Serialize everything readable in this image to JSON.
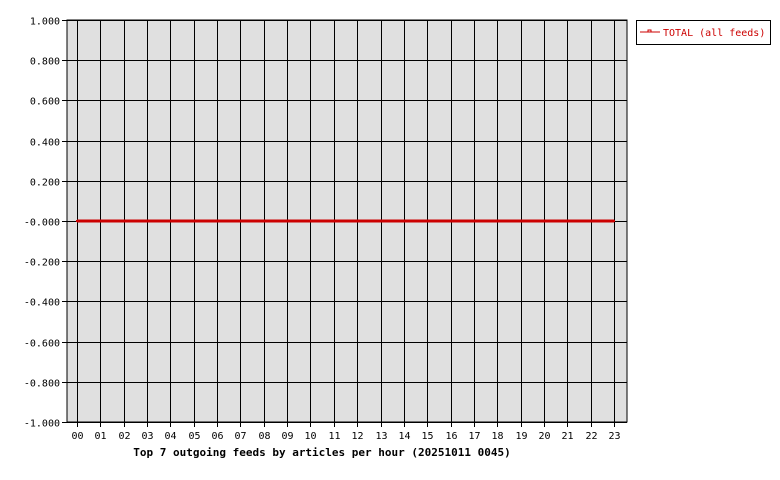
{
  "chart_data": {
    "type": "line",
    "title": "Top 7 outgoing feeds by articles per hour (20251011 0045)",
    "xlabel": "",
    "ylabel": "",
    "categories": [
      "00",
      "01",
      "02",
      "03",
      "04",
      "05",
      "06",
      "07",
      "08",
      "09",
      "10",
      "11",
      "12",
      "13",
      "14",
      "15",
      "16",
      "17",
      "18",
      "19",
      "20",
      "21",
      "22",
      "23"
    ],
    "ylim": [
      -1.0,
      1.0
    ],
    "yticks": [
      "1.000",
      "0.800",
      "0.600",
      "0.400",
      "0.200",
      "-0.000",
      "-0.200",
      "-0.400",
      "-0.600",
      "-0.800",
      "-1.000"
    ],
    "grid": true,
    "legend_position": "top-right",
    "series": [
      {
        "name": "TOTAL (all feeds)",
        "color": "#cc0000",
        "values": [
          0,
          0,
          0,
          0,
          0,
          0,
          0,
          0,
          0,
          0,
          0,
          0,
          0,
          0,
          0,
          0,
          0,
          0,
          0,
          0,
          0,
          0,
          0,
          0
        ]
      }
    ],
    "plot_background": "#e0e0e0"
  }
}
